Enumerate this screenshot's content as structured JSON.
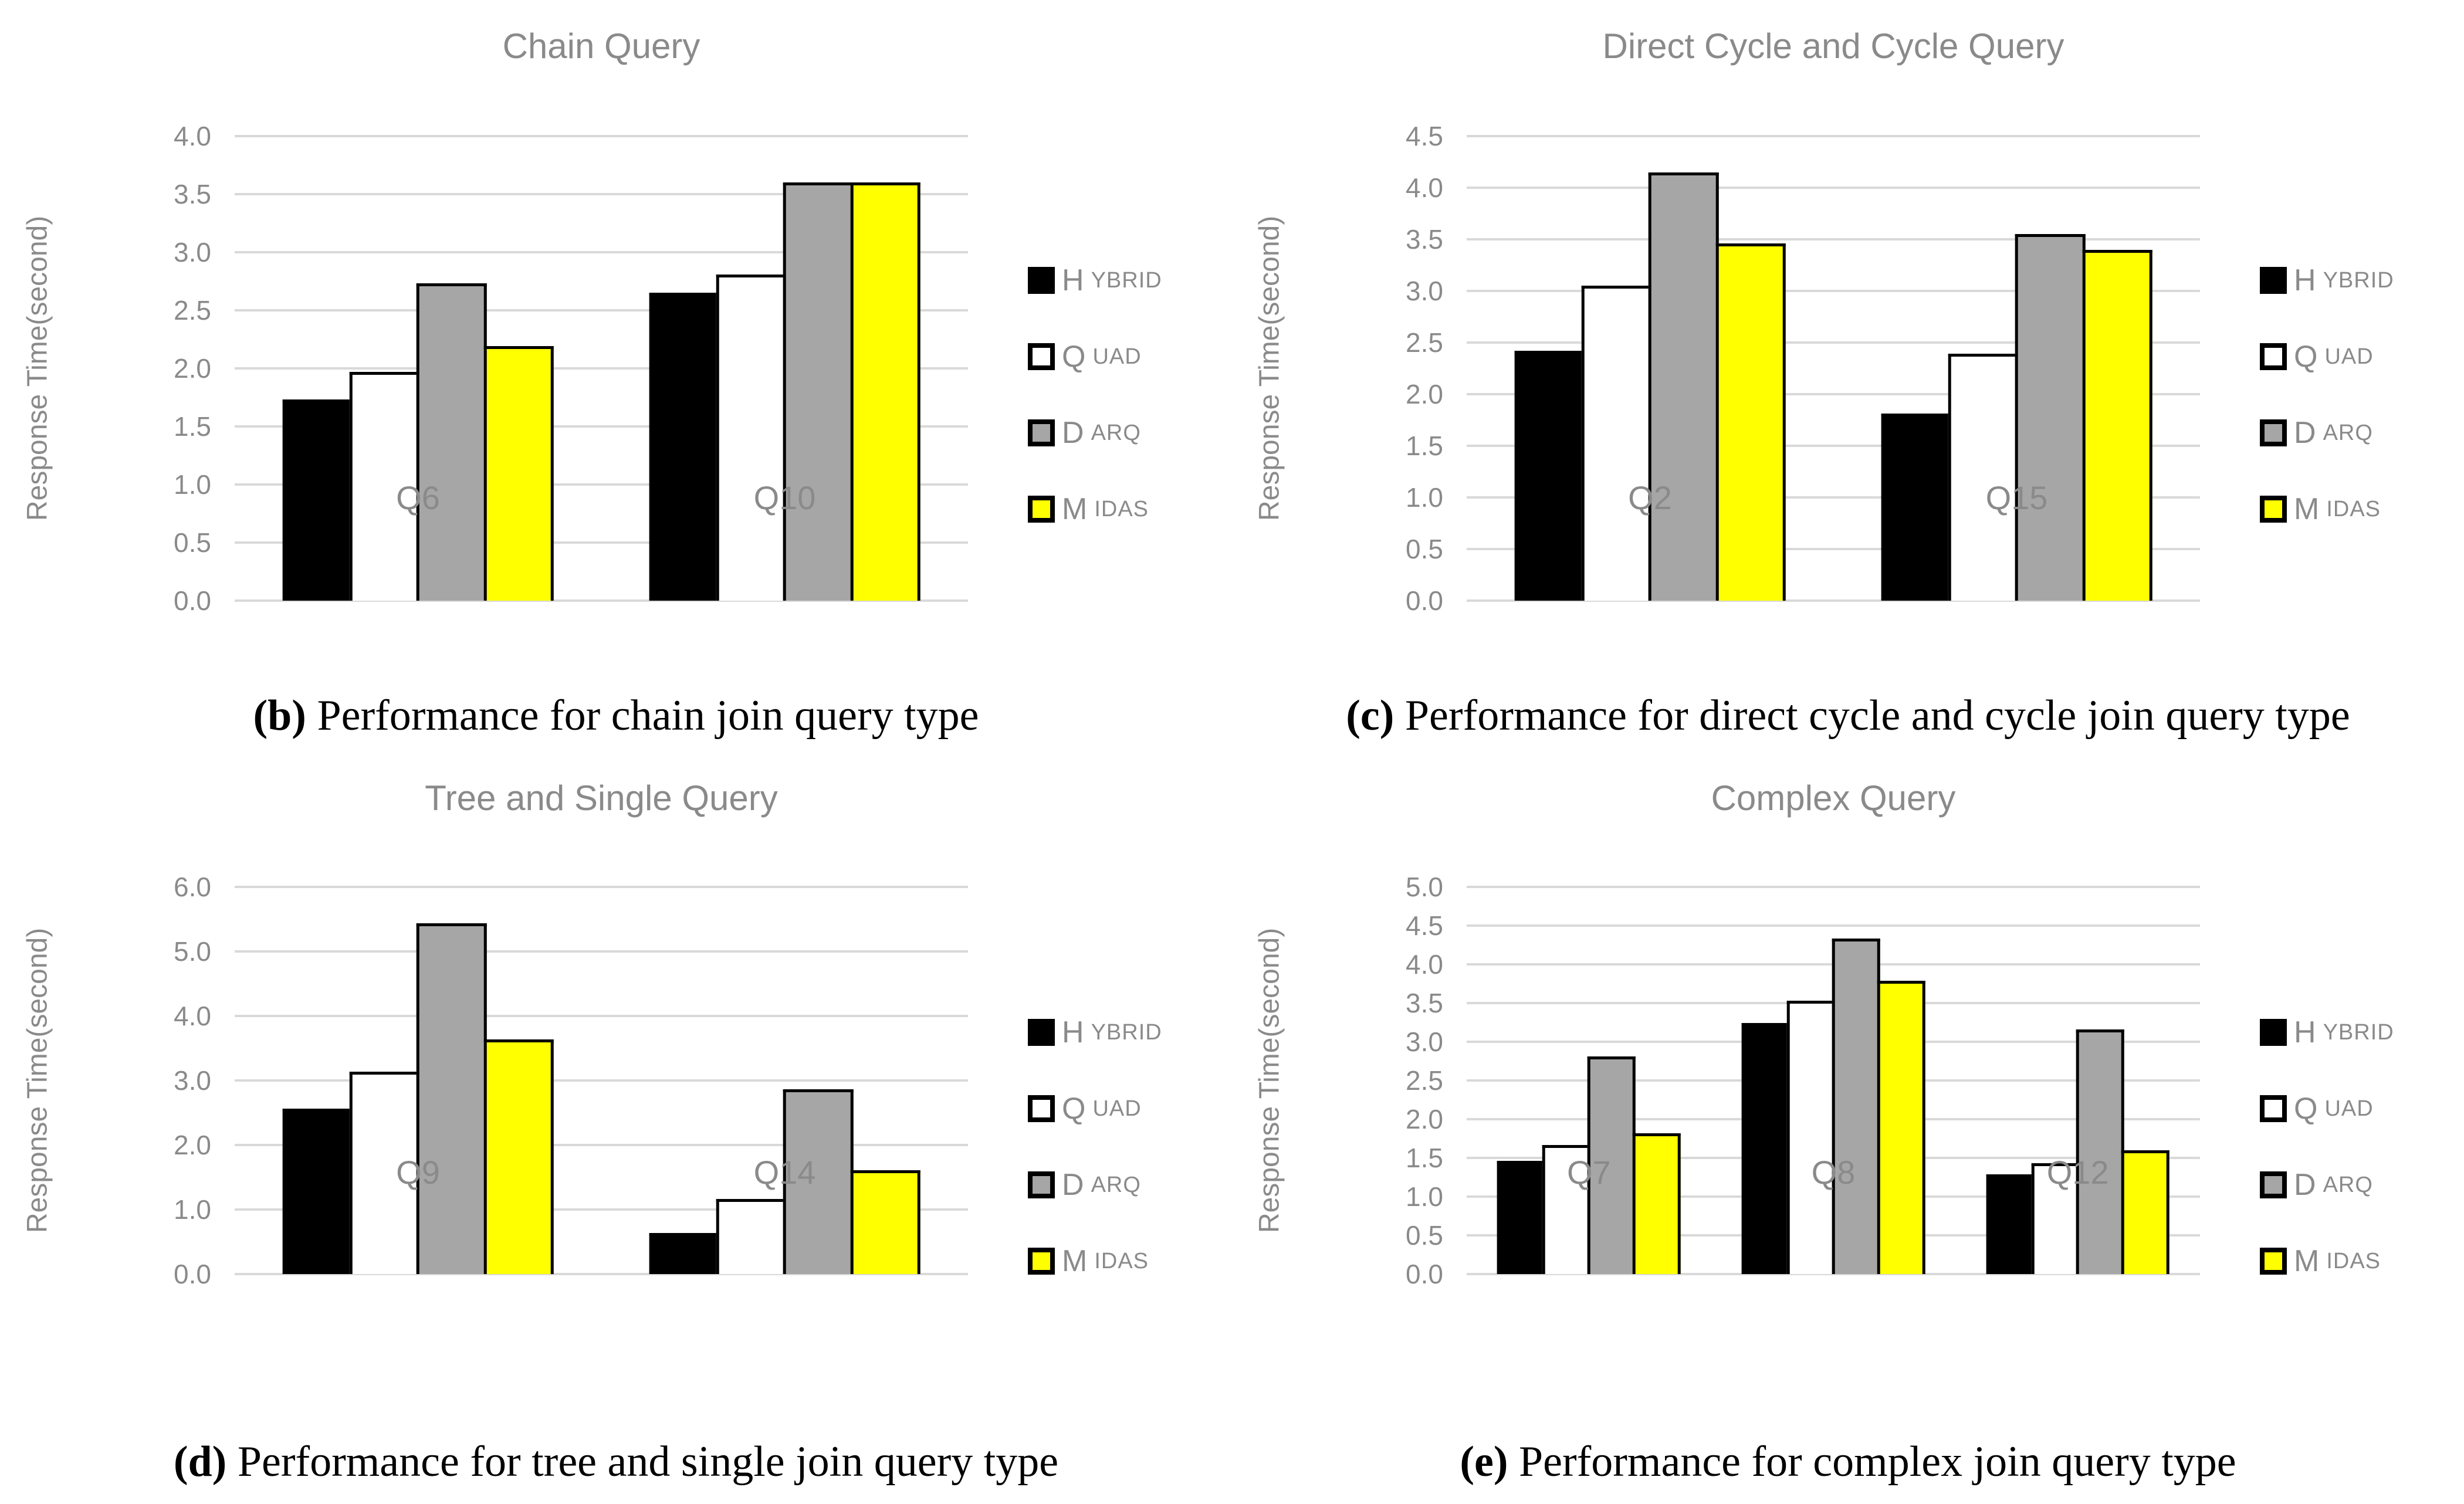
{
  "figure": {
    "background": "#ffffff",
    "text_color": "#8a8a8a",
    "gridline_color": "#d9d9d9",
    "bar_border_color": "#000000",
    "caption_color": "#000000"
  },
  "legend": {
    "position": "right",
    "swatch_border": "#000000",
    "items": [
      {
        "label": "Hybrid",
        "swatch_fill": "#000000"
      },
      {
        "label": "Quad",
        "swatch_fill": "#ffffff"
      },
      {
        "label": "Darq",
        "swatch_fill": "#a6a6a6"
      },
      {
        "label": "Midas",
        "swatch_fill": "#ffff00"
      }
    ]
  },
  "chart_data": [
    {
      "type": "bar",
      "title": "Chain Query",
      "ylabel": "Response Time(second)",
      "xlabel": "",
      "categories": [
        "Q6",
        "Q10"
      ],
      "series": [
        {
          "name": "Hybrid",
          "values": [
            1.73,
            2.65
          ]
        },
        {
          "name": "Quad",
          "values": [
            1.97,
            2.81
          ]
        },
        {
          "name": "Darq",
          "values": [
            2.73,
            3.6
          ]
        },
        {
          "name": "Midas",
          "values": [
            2.19,
            3.6
          ]
        }
      ],
      "ylim": [
        0,
        4.0
      ],
      "ytick_step": 0.5,
      "grid": true,
      "legend_position": "right",
      "caption_label": "(b)",
      "caption_text": " Performance for chain join query type"
    },
    {
      "type": "bar",
      "title": "Direct Cycle and Cycle Query",
      "ylabel": "Response Time(second)",
      "xlabel": "",
      "categories": [
        "Q2",
        "Q15"
      ],
      "series": [
        {
          "name": "Hybrid",
          "values": [
            2.42,
            1.81
          ]
        },
        {
          "name": "Quad",
          "values": [
            3.05,
            2.39
          ]
        },
        {
          "name": "Darq",
          "values": [
            4.15,
            3.55
          ]
        },
        {
          "name": "Midas",
          "values": [
            3.46,
            3.4
          ]
        }
      ],
      "ylim": [
        0,
        4.5
      ],
      "ytick_step": 0.5,
      "grid": true,
      "legend_position": "right",
      "caption_label": "(c)",
      "caption_text": " Performance for direct cycle and cycle join query type"
    },
    {
      "type": "bar",
      "title": "Tree and Single Query",
      "ylabel": "Response Time(second)",
      "xlabel": "",
      "categories": [
        "Q9",
        "Q14"
      ],
      "series": [
        {
          "name": "Hybrid",
          "values": [
            2.56,
            0.64
          ]
        },
        {
          "name": "Quad",
          "values": [
            3.14,
            1.16
          ]
        },
        {
          "name": "Darq",
          "values": [
            5.44,
            2.86
          ]
        },
        {
          "name": "Midas",
          "values": [
            3.64,
            1.61
          ]
        }
      ],
      "ylim": [
        0,
        6.0
      ],
      "ytick_step": 1.0,
      "grid": true,
      "legend_position": "right",
      "caption_label": "(d)",
      "caption_text": " Performance for tree and single join query type"
    },
    {
      "type": "bar",
      "title": "Complex Query",
      "ylabel": "Response Time(second)",
      "xlabel": "",
      "categories": [
        "Q7",
        "Q8",
        "Q12"
      ],
      "series": [
        {
          "name": "Hybrid",
          "values": [
            1.46,
            3.24,
            1.29
          ]
        },
        {
          "name": "Quad",
          "values": [
            1.67,
            3.53,
            1.43
          ]
        },
        {
          "name": "Darq",
          "values": [
            2.81,
            4.33,
            3.16
          ]
        },
        {
          "name": "Midas",
          "values": [
            1.82,
            3.79,
            1.6
          ]
        }
      ],
      "ylim": [
        0,
        5.0
      ],
      "ytick_step": 0.5,
      "grid": true,
      "legend_position": "right",
      "caption_label": "(e)",
      "caption_text": " Performance for complex join query type"
    }
  ]
}
